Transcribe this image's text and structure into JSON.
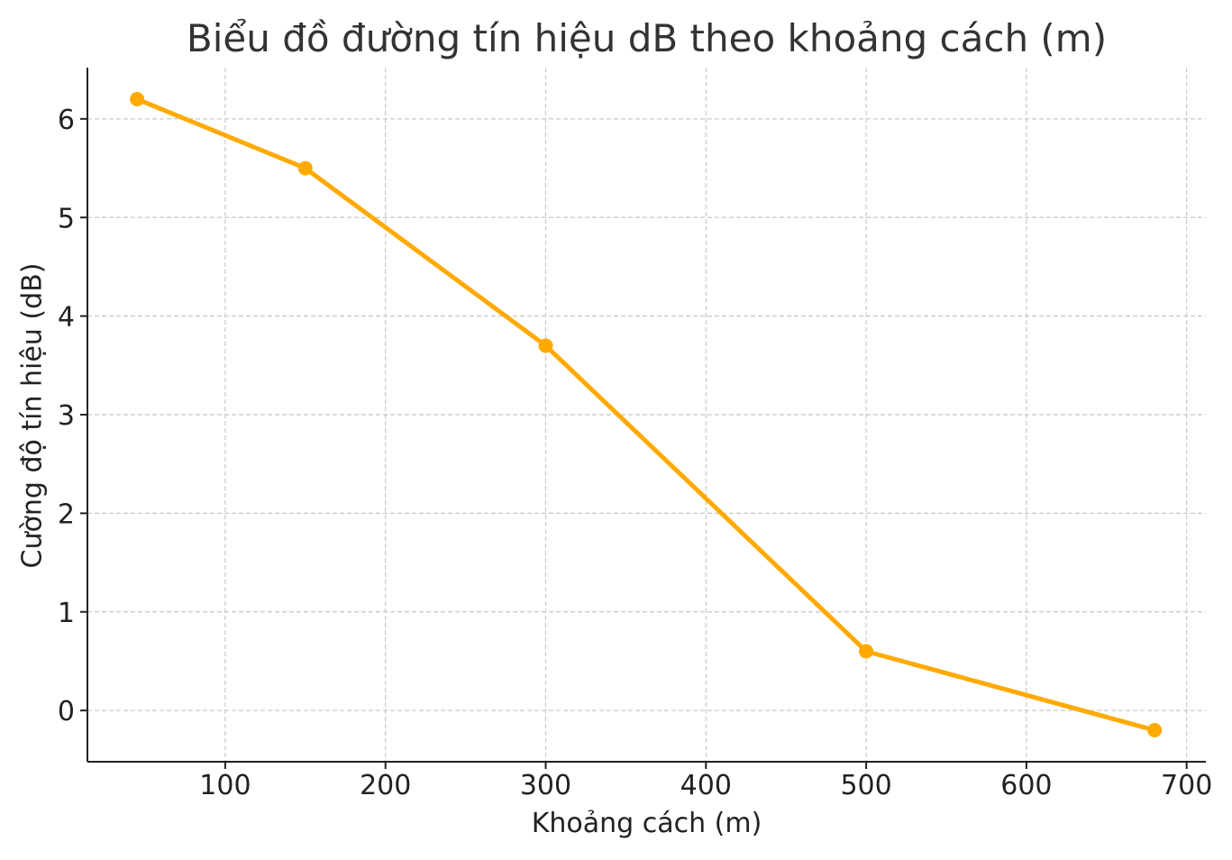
{
  "chart_data": {
    "type": "line",
    "title": "Biểu đồ đường tín hiệu dB theo khoảng cách (m)",
    "xlabel": "Khoảng cách (m)",
    "ylabel": "Cường độ tín hiệu (dB)",
    "x": [
      45,
      150,
      300,
      500,
      680
    ],
    "series": [
      {
        "values": [
          6.2,
          5.5,
          3.7,
          0.6,
          -0.2
        ]
      }
    ],
    "xlim": [
      14,
      712
    ],
    "ylim": [
      -0.52,
      6.52
    ],
    "xticks": [
      100,
      200,
      300,
      400,
      500,
      600,
      700
    ],
    "yticks": [
      0,
      1,
      2,
      3,
      4,
      5,
      6
    ],
    "grid": true,
    "legend": "none",
    "colors": {
      "line": "#ffaa00",
      "grid": "#c8c8c8",
      "axis": "#222222",
      "text": "#222222"
    }
  }
}
